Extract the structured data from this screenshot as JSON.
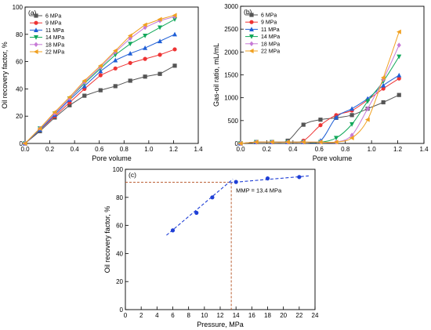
{
  "chart_data": [
    {
      "id": "a",
      "panel_label": "(a)",
      "type": "line",
      "xlabel": "Pore volume",
      "ylabel": "Oil recovery factor, %",
      "xlim": [
        0,
        1.4
      ],
      "ylim": [
        0,
        100
      ],
      "xticks": [
        "0.0",
        "0.2",
        "0.4",
        "0.6",
        "0.8",
        "1.0",
        "1.2",
        "1.4"
      ],
      "yticks": [
        "0",
        "20",
        "40",
        "60",
        "80",
        "100"
      ],
      "legend_position": "top-left",
      "x": [
        0.0,
        0.12,
        0.24,
        0.36,
        0.48,
        0.61,
        0.73,
        0.85,
        0.97,
        1.09,
        1.21
      ],
      "series": [
        {
          "name": "6 MPa",
          "color": "#555555",
          "marker": "square",
          "values": [
            0,
            9,
            19,
            28,
            35,
            39,
            42,
            46,
            49,
            51,
            57
          ]
        },
        {
          "name": "9 MPa",
          "color": "#ee3333",
          "marker": "circle",
          "values": [
            0,
            10,
            20,
            30,
            40,
            50,
            55,
            59,
            62,
            65,
            69
          ]
        },
        {
          "name": "11 MPa",
          "color": "#1f5fd6",
          "marker": "triangle-up",
          "values": [
            0,
            10,
            21,
            32,
            42,
            53,
            61,
            66,
            70,
            75,
            80
          ]
        },
        {
          "name": "14 MPa",
          "color": "#11a85a",
          "marker": "triangle-down",
          "values": [
            0,
            11,
            22,
            33,
            44,
            55,
            65,
            73,
            79,
            85,
            91
          ]
        },
        {
          "name": "18 MPa",
          "color": "#c77ad6",
          "marker": "diamond",
          "values": [
            0,
            11,
            22,
            33,
            45,
            56,
            67,
            77,
            85,
            90,
            93
          ]
        },
        {
          "name": "22 MPa",
          "color": "#f0a020",
          "marker": "triangle-left",
          "values": [
            0,
            11,
            23,
            34,
            46,
            57,
            68,
            79,
            87,
            91,
            94
          ]
        }
      ]
    },
    {
      "id": "b",
      "panel_label": "(b)",
      "type": "line",
      "xlabel": "Pore volume",
      "ylabel": "Gas-oil ratio, mL/mL",
      "xlim": [
        0,
        1.4
      ],
      "ylim": [
        0,
        3000
      ],
      "xticks": [
        "0.0",
        "0.2",
        "0.4",
        "0.6",
        "0.8",
        "1.0",
        "1.2",
        "1.4"
      ],
      "yticks": [
        "0",
        "500",
        "1000",
        "1500",
        "2000",
        "2500",
        "3000"
      ],
      "legend_position": "top-left",
      "x": [
        0.0,
        0.12,
        0.24,
        0.36,
        0.48,
        0.61,
        0.73,
        0.85,
        0.97,
        1.09,
        1.21
      ],
      "series": [
        {
          "name": "6 MPa",
          "color": "#555555",
          "marker": "square",
          "values": [
            0,
            30,
            30,
            60,
            410,
            520,
            560,
            620,
            760,
            900,
            1060
          ]
        },
        {
          "name": "9 MPa",
          "color": "#ee3333",
          "marker": "circle",
          "values": [
            0,
            30,
            30,
            30,
            60,
            400,
            620,
            720,
            950,
            1200,
            1420
          ]
        },
        {
          "name": "11 MPa",
          "color": "#1f5fd6",
          "marker": "triangle-up",
          "values": [
            0,
            30,
            30,
            30,
            30,
            60,
            570,
            760,
            980,
            1270,
            1490
          ]
        },
        {
          "name": "14 MPa",
          "color": "#11a85a",
          "marker": "triangle-down",
          "values": [
            0,
            30,
            30,
            30,
            30,
            30,
            120,
            420,
            920,
            1360,
            1900
          ]
        },
        {
          "name": "18 MPa",
          "color": "#c77ad6",
          "marker": "diamond",
          "values": [
            0,
            30,
            30,
            30,
            30,
            30,
            30,
            180,
            760,
            1400,
            2150
          ]
        },
        {
          "name": "22 MPa",
          "color": "#f0a020",
          "marker": "triangle-left",
          "values": [
            0,
            30,
            30,
            30,
            30,
            30,
            30,
            120,
            520,
            1440,
            2440
          ]
        }
      ]
    },
    {
      "id": "c",
      "panel_label": "(c)",
      "type": "scatter",
      "xlabel": "Pressure, MPa",
      "ylabel": "Oil recovery factor, %",
      "xlim": [
        0,
        24
      ],
      "ylim": [
        0,
        100
      ],
      "xticks": [
        "0",
        "2",
        "4",
        "6",
        "8",
        "10",
        "12",
        "14",
        "16",
        "18",
        "20",
        "22",
        "24"
      ],
      "yticks": [
        "0",
        "20",
        "40",
        "60",
        "80",
        "100"
      ],
      "points": {
        "x": [
          6,
          9,
          11,
          14,
          18,
          22
        ],
        "y": [
          56.5,
          69,
          80,
          91,
          93.5,
          94.5
        ],
        "color": "#1f3fd6"
      },
      "fit_lines": [
        {
          "x": [
            5.2,
            13.6
          ],
          "y": [
            53,
            93
          ],
          "color": "#1f3fd6"
        },
        {
          "x": [
            13.2,
            23.2
          ],
          "y": [
            90.5,
            95.3
          ],
          "color": "#1f3fd6"
        }
      ],
      "mmp": {
        "x": 13.4,
        "y": 90.8,
        "label": "MMP = 13.4 MPa",
        "color": "#b24c1c"
      }
    }
  ]
}
